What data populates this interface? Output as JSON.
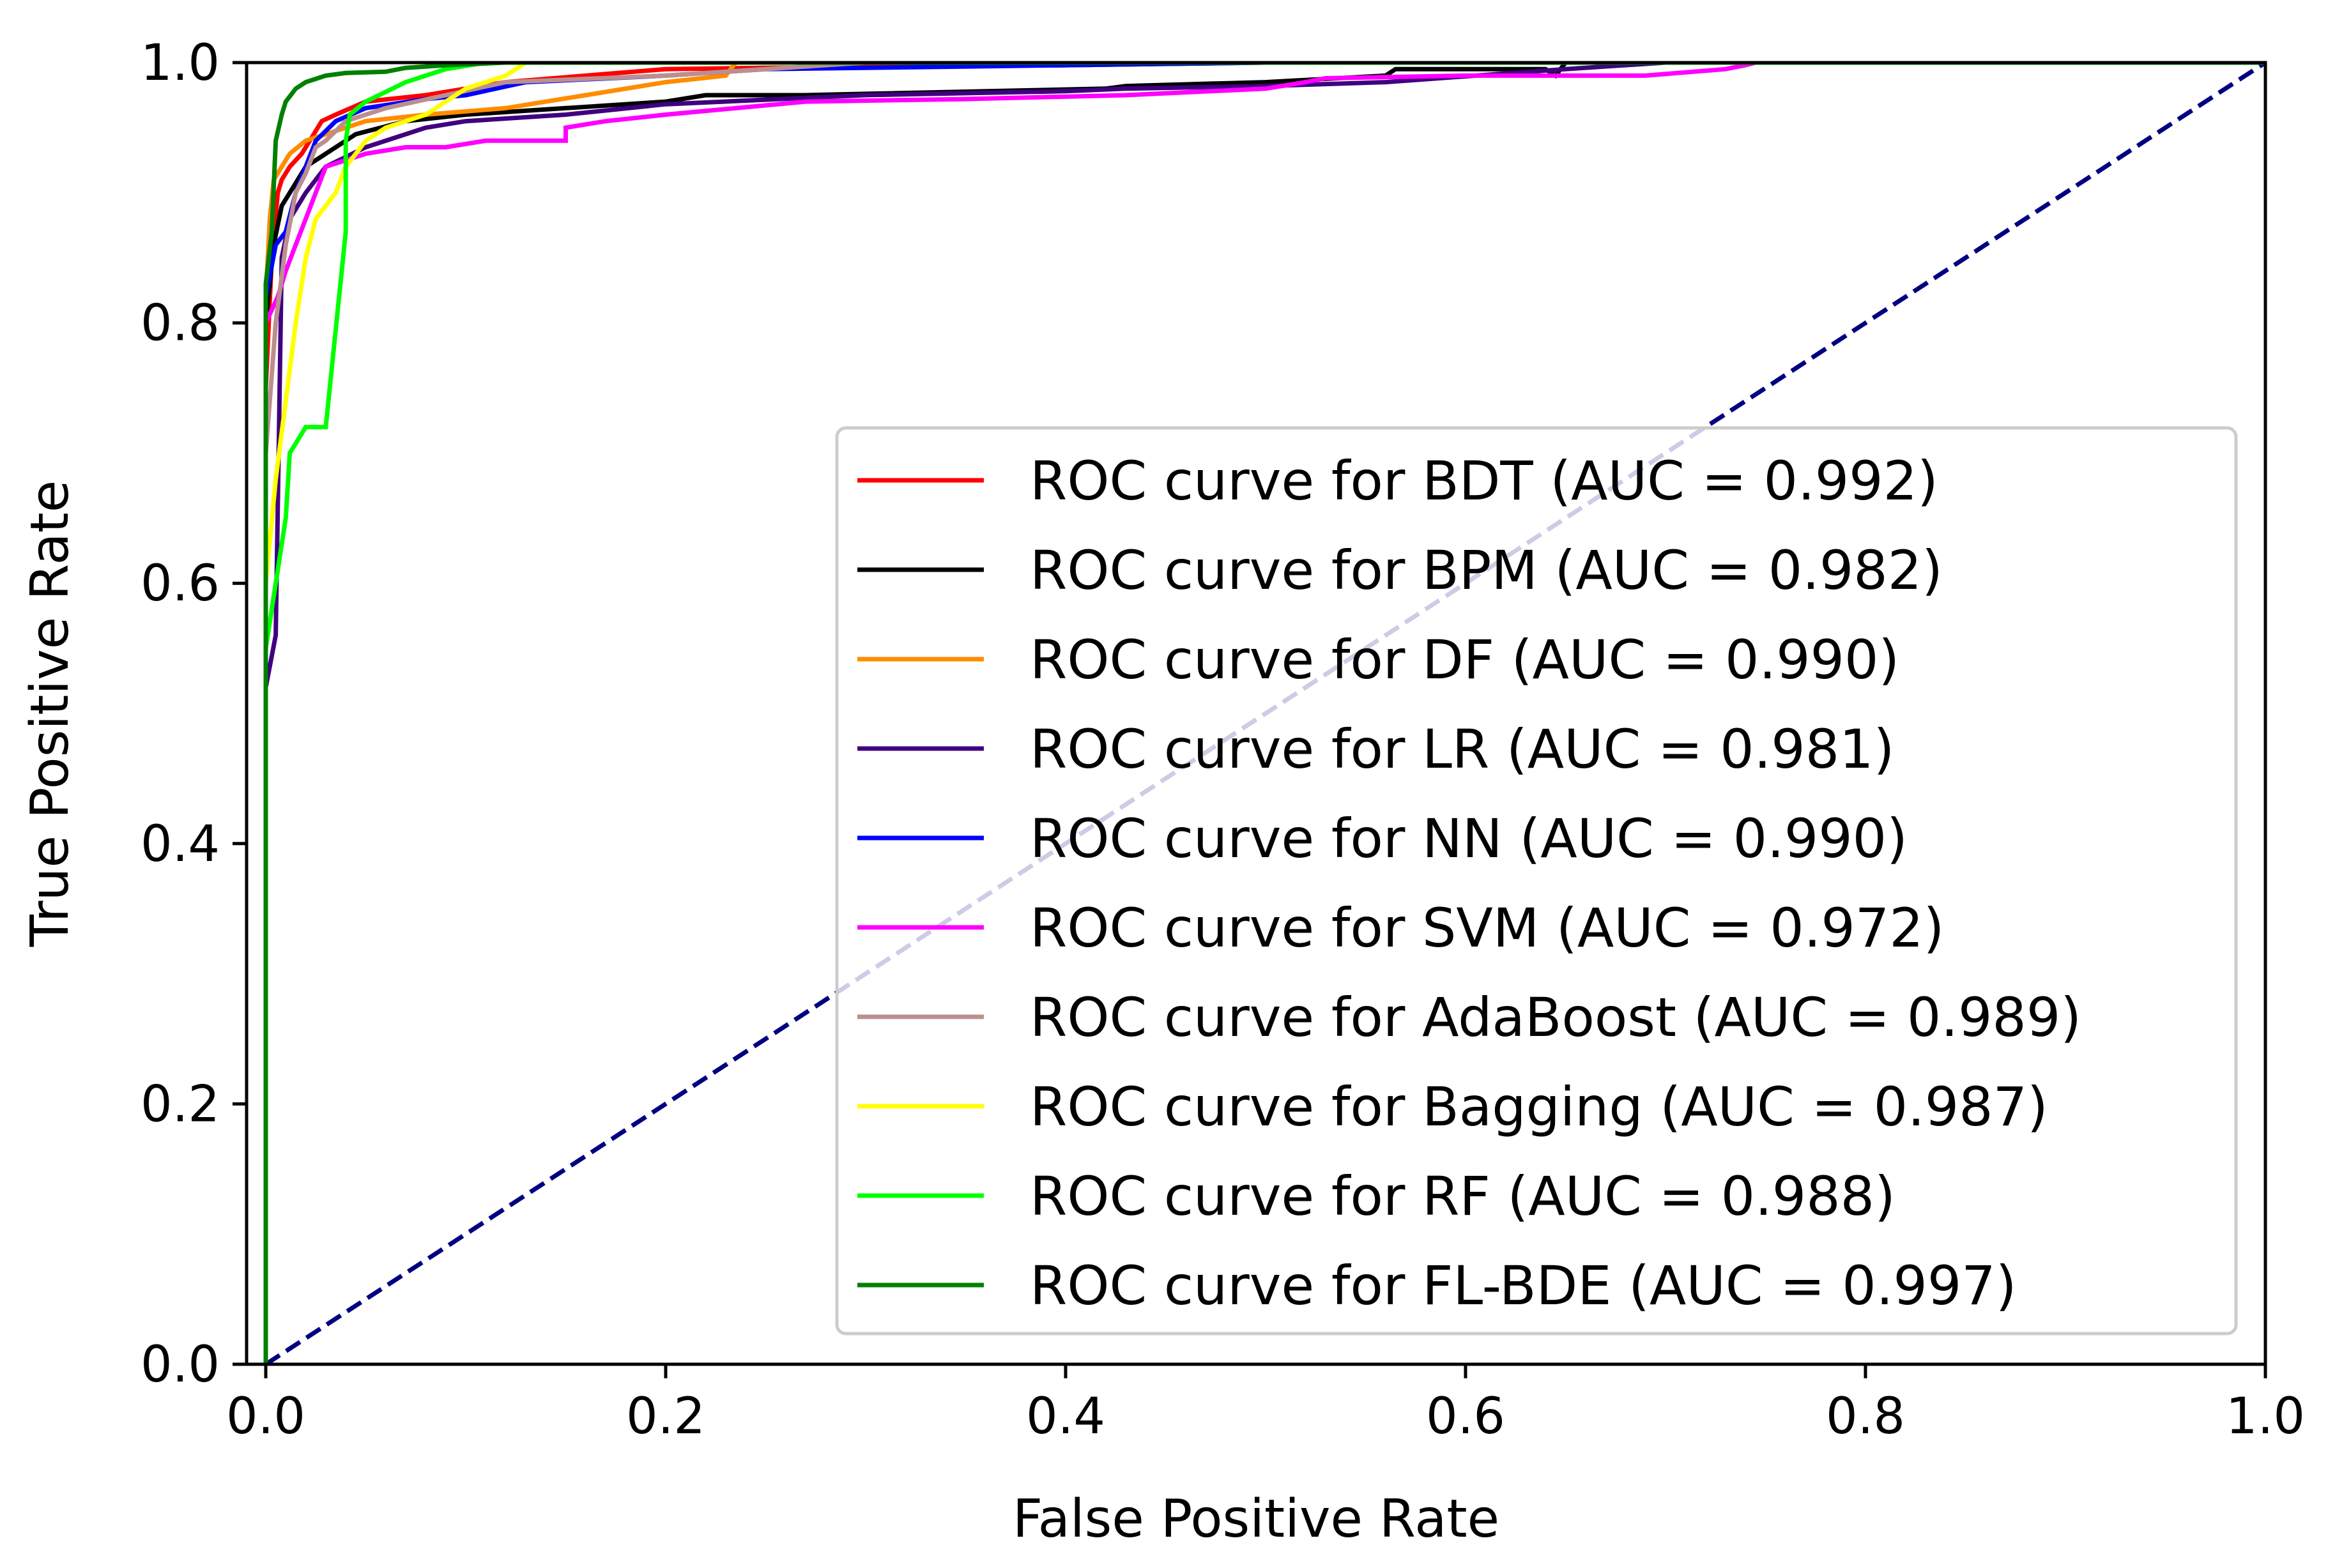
{
  "chart_data": {
    "type": "line",
    "title": "",
    "xlabel": "False Positive Rate",
    "ylabel": "True Positive Rate",
    "xlim": [
      0.0,
      1.0
    ],
    "ylim": [
      0.0,
      1.0
    ],
    "grid": false,
    "legend_position": "lower-right",
    "x_ticks": [
      0.0,
      0.2,
      0.4,
      0.6,
      0.8,
      1.0
    ],
    "y_ticks": [
      0.0,
      0.2,
      0.4,
      0.6,
      0.8,
      1.0
    ],
    "x_tick_labels": [
      "0.0",
      "0.2",
      "0.4",
      "0.6",
      "0.8",
      "1.0"
    ],
    "y_tick_labels": [
      "0.0",
      "0.2",
      "0.4",
      "0.6",
      "0.8",
      "1.0"
    ],
    "diagonal": {
      "name": "chance",
      "color": "#000080",
      "dashed": true,
      "x": [
        0.0,
        1.0
      ],
      "y": [
        0.0,
        1.0
      ]
    },
    "series": [
      {
        "name": "BDT",
        "label": "ROC curve for BDT (AUC = 0.992)",
        "auc": 0.992,
        "color": "#ff0000",
        "x": [
          0.0,
          0.0,
          0.003,
          0.006,
          0.008,
          0.012,
          0.018,
          0.022,
          0.028,
          0.035,
          0.05,
          0.08,
          0.12,
          0.2,
          0.3,
          0.4,
          0.5,
          1.0
        ],
        "y": [
          0.0,
          0.75,
          0.85,
          0.9,
          0.91,
          0.92,
          0.93,
          0.94,
          0.955,
          0.96,
          0.97,
          0.975,
          0.985,
          0.995,
          0.997,
          0.998,
          1.0,
          1.0
        ]
      },
      {
        "name": "BPM",
        "label": "ROC curve for BPM (AUC = 0.982)",
        "auc": 0.982,
        "color": "#000000",
        "x": [
          0.0,
          0.0,
          0.004,
          0.008,
          0.012,
          0.02,
          0.03,
          0.045,
          0.07,
          0.1,
          0.15,
          0.2,
          0.22,
          0.27,
          0.3,
          0.42,
          0.43,
          0.5,
          0.56,
          0.565,
          0.64,
          0.645,
          0.65,
          1.0
        ],
        "y": [
          0.0,
          0.8,
          0.86,
          0.89,
          0.9,
          0.92,
          0.93,
          0.945,
          0.955,
          0.96,
          0.965,
          0.97,
          0.975,
          0.975,
          0.976,
          0.98,
          0.982,
          0.985,
          0.99,
          0.995,
          0.995,
          0.99,
          1.0,
          1.0
        ]
      },
      {
        "name": "DF",
        "label": "ROC curve for DF (AUC = 0.990)",
        "auc": 0.99,
        "color": "#ff8c00",
        "x": [
          0.0,
          0.0,
          0.002,
          0.004,
          0.008,
          0.012,
          0.02,
          0.03,
          0.05,
          0.08,
          0.12,
          0.16,
          0.2,
          0.23,
          0.235,
          0.5,
          1.0
        ],
        "y": [
          0.0,
          0.82,
          0.88,
          0.91,
          0.92,
          0.93,
          0.94,
          0.945,
          0.955,
          0.96,
          0.965,
          0.975,
          0.985,
          0.99,
          1.0,
          1.0,
          1.0
        ]
      },
      {
        "name": "LR",
        "label": "ROC curve for LR (AUC = 0.981)",
        "auc": 0.981,
        "color": "#400080",
        "x": [
          0.0,
          0.0,
          0.005,
          0.008,
          0.012,
          0.02,
          0.03,
          0.05,
          0.08,
          0.1,
          0.15,
          0.2,
          0.3,
          0.4,
          0.43,
          0.5,
          0.56,
          0.65,
          0.7,
          1.0
        ],
        "y": [
          0.0,
          0.52,
          0.56,
          0.85,
          0.88,
          0.9,
          0.92,
          0.935,
          0.95,
          0.955,
          0.96,
          0.968,
          0.975,
          0.978,
          0.98,
          0.982,
          0.985,
          0.995,
          1.0,
          1.0
        ]
      },
      {
        "name": "NN",
        "label": "ROC curve for NN (AUC = 0.990)",
        "auc": 0.99,
        "color": "#0000ff",
        "x": [
          0.0,
          0.0,
          0.005,
          0.01,
          0.015,
          0.02,
          0.025,
          0.035,
          0.05,
          0.08,
          0.1,
          0.13,
          0.2,
          0.25,
          0.4,
          0.5,
          1.0
        ],
        "y": [
          0.0,
          0.82,
          0.86,
          0.87,
          0.9,
          0.92,
          0.94,
          0.955,
          0.965,
          0.972,
          0.975,
          0.985,
          0.99,
          0.995,
          0.998,
          1.0,
          1.0
        ]
      },
      {
        "name": "SVM",
        "label": "ROC curve for SVM (AUC = 0.972)",
        "auc": 0.972,
        "color": "#ff00ff",
        "x": [
          0.0,
          0.0,
          0.003,
          0.006,
          0.01,
          0.015,
          0.02,
          0.03,
          0.05,
          0.07,
          0.09,
          0.11,
          0.15,
          0.15,
          0.17,
          0.2,
          0.27,
          0.35,
          0.43,
          0.5,
          0.52,
          0.53,
          0.6,
          0.68,
          0.69,
          0.73,
          0.74,
          0.745,
          1.0
        ],
        "y": [
          0.0,
          0.8,
          0.81,
          0.82,
          0.84,
          0.86,
          0.88,
          0.92,
          0.93,
          0.935,
          0.935,
          0.94,
          0.94,
          0.95,
          0.955,
          0.96,
          0.97,
          0.972,
          0.975,
          0.98,
          0.985,
          0.988,
          0.99,
          0.99,
          0.99,
          0.995,
          0.998,
          1.0,
          1.0
        ]
      },
      {
        "name": "AdaBoost",
        "label": "ROC curve for AdaBoost (AUC = 0.989)",
        "auc": 0.989,
        "color": "#bc8f8f",
        "x": [
          0.0,
          0.0,
          0.005,
          0.01,
          0.015,
          0.02,
          0.025,
          0.03,
          0.04,
          0.06,
          0.09,
          0.12,
          0.2,
          0.3,
          1.0
        ],
        "y": [
          0.0,
          0.7,
          0.8,
          0.86,
          0.9,
          0.915,
          0.935,
          0.94,
          0.955,
          0.965,
          0.975,
          0.985,
          0.99,
          1.0,
          1.0
        ]
      },
      {
        "name": "Bagging",
        "label": "ROC curve for Bagging (AUC = 0.987)",
        "auc": 0.987,
        "color": "#ffff00",
        "x": [
          0.0,
          0.0,
          0.005,
          0.01,
          0.015,
          0.02,
          0.025,
          0.03,
          0.035,
          0.04,
          0.045,
          0.05,
          0.06,
          0.07,
          0.08,
          0.1,
          0.12,
          0.13,
          1.0
        ],
        "y": [
          0.0,
          0.6,
          0.68,
          0.74,
          0.8,
          0.85,
          0.88,
          0.89,
          0.9,
          0.92,
          0.93,
          0.94,
          0.95,
          0.955,
          0.96,
          0.98,
          0.99,
          1.0,
          1.0
        ]
      },
      {
        "name": "RF",
        "label": "ROC curve for RF (AUC = 0.988)",
        "auc": 0.988,
        "color": "#00ff00",
        "x": [
          0.0,
          0.0,
          0.005,
          0.01,
          0.012,
          0.02,
          0.021,
          0.03,
          0.04,
          0.04,
          0.042,
          0.05,
          0.07,
          0.09,
          0.11,
          0.12,
          1.0
        ],
        "y": [
          0.0,
          0.55,
          0.6,
          0.65,
          0.7,
          0.72,
          0.72,
          0.72,
          0.87,
          0.94,
          0.96,
          0.97,
          0.985,
          0.995,
          1.0,
          1.0,
          1.0
        ]
      },
      {
        "name": "FL-BDE",
        "label": "ROC curve for FL-BDE (AUC = 0.997)",
        "auc": 0.997,
        "color": "#008000",
        "x": [
          0.0,
          0.0,
          0.003,
          0.005,
          0.008,
          0.01,
          0.015,
          0.02,
          0.03,
          0.04,
          0.06,
          0.07,
          0.09,
          0.12,
          0.2,
          0.3,
          0.5,
          1.0
        ],
        "y": [
          0.0,
          0.83,
          0.87,
          0.94,
          0.96,
          0.97,
          0.98,
          0.985,
          0.99,
          0.992,
          0.993,
          0.996,
          0.998,
          1.0,
          1.0,
          1.0,
          1.0,
          1.0
        ]
      }
    ]
  }
}
